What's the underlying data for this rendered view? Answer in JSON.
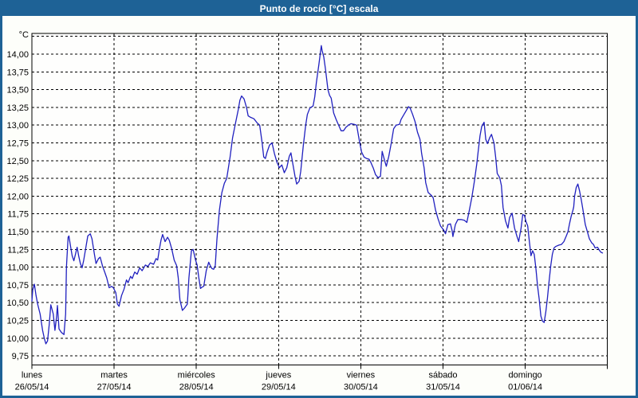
{
  "window": {
    "title": "Punto de rocío [°C] escala"
  },
  "colors": {
    "frame_blue": "#1E6296",
    "title_text": "#FFFFFF",
    "panel_bg": "#FDFEFA",
    "plot_bg": "#FEFEFD",
    "axis_black": "#000000",
    "grid_black": "#000000",
    "label_text": "#000000",
    "series_line": "#2020BF"
  },
  "chart_data": {
    "type": "line",
    "title": "Punto de rocío [°C] escala",
    "ylabel": "°C",
    "xlabel": "",
    "grid": "dashed",
    "legend": "none",
    "ylim": [
      9.63,
      14.29
    ],
    "ytick_min": 9.75,
    "ytick_step": 0.25,
    "ytick_count_with_hidden_top": 19,
    "ytick_labels": [
      "9,75",
      "10,00",
      "10,25",
      "10,50",
      "10,75",
      "11,00",
      "11,25",
      "11,50",
      "11,75",
      "12,00",
      "12,25",
      "12,50",
      "12,75",
      "13,00",
      "13,25",
      "13,50",
      "13,75",
      "14,00"
    ],
    "xlim_days": [
      0,
      7
    ],
    "categories": [
      {
        "day": "lunes",
        "date": "26/05/14"
      },
      {
        "day": "martes",
        "date": "27/05/14"
      },
      {
        "day": "miércoles",
        "date": "28/05/14"
      },
      {
        "day": "jueves",
        "date": "29/05/14"
      },
      {
        "day": "viernes",
        "date": "30/05/14"
      },
      {
        "day": "sábado",
        "date": "31/05/14"
      },
      {
        "day": "domingo",
        "date": "01/06/14"
      }
    ],
    "series": [
      {
        "points": [
          [
            0.0,
            10.52
          ],
          [
            0.01,
            10.68
          ],
          [
            0.03,
            10.76
          ],
          [
            0.05,
            10.6
          ],
          [
            0.07,
            10.48
          ],
          [
            0.1,
            10.34
          ],
          [
            0.13,
            10.11
          ],
          [
            0.15,
            10.0
          ],
          [
            0.17,
            9.92
          ],
          [
            0.19,
            9.96
          ],
          [
            0.21,
            10.19
          ],
          [
            0.23,
            10.47
          ],
          [
            0.26,
            10.34
          ],
          [
            0.28,
            10.11
          ],
          [
            0.3,
            10.3
          ],
          [
            0.31,
            10.46
          ],
          [
            0.33,
            10.13
          ],
          [
            0.36,
            10.08
          ],
          [
            0.39,
            10.05
          ],
          [
            0.41,
            10.34
          ],
          [
            0.42,
            11.0
          ],
          [
            0.44,
            11.42
          ],
          [
            0.45,
            11.44
          ],
          [
            0.47,
            11.29
          ],
          [
            0.49,
            11.16
          ],
          [
            0.51,
            11.09
          ],
          [
            0.53,
            11.18
          ],
          [
            0.55,
            11.28
          ],
          [
            0.57,
            11.15
          ],
          [
            0.59,
            11.05
          ],
          [
            0.61,
            10.99
          ],
          [
            0.63,
            11.1
          ],
          [
            0.66,
            11.3
          ],
          [
            0.68,
            11.44
          ],
          [
            0.71,
            11.47
          ],
          [
            0.73,
            11.4
          ],
          [
            0.76,
            11.18
          ],
          [
            0.78,
            11.05
          ],
          [
            0.81,
            11.12
          ],
          [
            0.83,
            11.14
          ],
          [
            0.86,
            11.01
          ],
          [
            0.88,
            10.95
          ],
          [
            0.91,
            10.85
          ],
          [
            0.94,
            10.71
          ],
          [
            0.97,
            10.73
          ],
          [
            0.99,
            10.71
          ],
          [
            1.02,
            10.64
          ],
          [
            1.04,
            10.48
          ],
          [
            1.06,
            10.45
          ],
          [
            1.09,
            10.6
          ],
          [
            1.12,
            10.69
          ],
          [
            1.15,
            10.82
          ],
          [
            1.17,
            10.78
          ],
          [
            1.2,
            10.87
          ],
          [
            1.22,
            10.84
          ],
          [
            1.25,
            10.93
          ],
          [
            1.28,
            10.9
          ],
          [
            1.31,
            10.99
          ],
          [
            1.34,
            10.95
          ],
          [
            1.38,
            11.03
          ],
          [
            1.41,
            11.01
          ],
          [
            1.44,
            11.06
          ],
          [
            1.48,
            11.04
          ],
          [
            1.51,
            11.12
          ],
          [
            1.53,
            11.1
          ],
          [
            1.55,
            11.25
          ],
          [
            1.57,
            11.38
          ],
          [
            1.59,
            11.46
          ],
          [
            1.62,
            11.36
          ],
          [
            1.65,
            11.42
          ],
          [
            1.67,
            11.38
          ],
          [
            1.7,
            11.26
          ],
          [
            1.73,
            11.1
          ],
          [
            1.76,
            11.02
          ],
          [
            1.78,
            10.85
          ],
          [
            1.8,
            10.54
          ],
          [
            1.83,
            10.39
          ],
          [
            1.86,
            10.43
          ],
          [
            1.89,
            10.48
          ],
          [
            1.91,
            10.85
          ],
          [
            1.94,
            11.23
          ],
          [
            1.96,
            11.25
          ],
          [
            1.99,
            11.1
          ],
          [
            2.01,
            11.03
          ],
          [
            2.03,
            10.85
          ],
          [
            2.05,
            10.7
          ],
          [
            2.07,
            10.72
          ],
          [
            2.09,
            10.73
          ],
          [
            2.12,
            10.95
          ],
          [
            2.15,
            11.07
          ],
          [
            2.17,
            11.02
          ],
          [
            2.19,
            10.98
          ],
          [
            2.21,
            10.97
          ],
          [
            2.23,
            11.02
          ],
          [
            2.25,
            11.39
          ],
          [
            2.28,
            11.8
          ],
          [
            2.31,
            12.05
          ],
          [
            2.34,
            12.18
          ],
          [
            2.37,
            12.25
          ],
          [
            2.41,
            12.55
          ],
          [
            2.44,
            12.82
          ],
          [
            2.48,
            13.05
          ],
          [
            2.51,
            13.22
          ],
          [
            2.53,
            13.35
          ],
          [
            2.55,
            13.41
          ],
          [
            2.58,
            13.37
          ],
          [
            2.61,
            13.25
          ],
          [
            2.63,
            13.13
          ],
          [
            2.66,
            13.11
          ],
          [
            2.7,
            13.09
          ],
          [
            2.74,
            13.03
          ],
          [
            2.77,
            13.0
          ],
          [
            2.8,
            12.75
          ],
          [
            2.82,
            12.55
          ],
          [
            2.84,
            12.53
          ],
          [
            2.86,
            12.62
          ],
          [
            2.89,
            12.72
          ],
          [
            2.92,
            12.75
          ],
          [
            2.95,
            12.6
          ],
          [
            2.98,
            12.48
          ],
          [
            3.01,
            12.4
          ],
          [
            3.04,
            12.44
          ],
          [
            3.07,
            12.33
          ],
          [
            3.1,
            12.4
          ],
          [
            3.13,
            12.56
          ],
          [
            3.15,
            12.61
          ],
          [
            3.17,
            12.48
          ],
          [
            3.2,
            12.28
          ],
          [
            3.22,
            12.17
          ],
          [
            3.25,
            12.21
          ],
          [
            3.27,
            12.35
          ],
          [
            3.3,
            12.7
          ],
          [
            3.33,
            13.0
          ],
          [
            3.35,
            13.15
          ],
          [
            3.38,
            13.24
          ],
          [
            3.42,
            13.27
          ],
          [
            3.44,
            13.4
          ],
          [
            3.46,
            13.6
          ],
          [
            3.49,
            13.85
          ],
          [
            3.52,
            14.12
          ],
          [
            3.53,
            14.05
          ],
          [
            3.55,
            13.96
          ],
          [
            3.57,
            13.79
          ],
          [
            3.6,
            13.5
          ],
          [
            3.62,
            13.42
          ],
          [
            3.64,
            13.38
          ],
          [
            3.67,
            13.17
          ],
          [
            3.7,
            13.08
          ],
          [
            3.73,
            13.0
          ],
          [
            3.76,
            12.92
          ],
          [
            3.79,
            12.92
          ],
          [
            3.82,
            12.97
          ],
          [
            3.85,
            13.0
          ],
          [
            3.88,
            13.02
          ],
          [
            3.92,
            13.01
          ],
          [
            3.95,
            13.0
          ],
          [
            3.98,
            12.8
          ],
          [
            4.01,
            12.62
          ],
          [
            4.04,
            12.55
          ],
          [
            4.07,
            12.53
          ],
          [
            4.1,
            12.52
          ],
          [
            4.12,
            12.48
          ],
          [
            4.15,
            12.4
          ],
          [
            4.18,
            12.3
          ],
          [
            4.21,
            12.26
          ],
          [
            4.24,
            12.28
          ],
          [
            4.26,
            12.63
          ],
          [
            4.29,
            12.5
          ],
          [
            4.31,
            12.42
          ],
          [
            4.34,
            12.56
          ],
          [
            4.37,
            12.74
          ],
          [
            4.4,
            12.95
          ],
          [
            4.43,
            13.0
          ],
          [
            4.47,
            13.01
          ],
          [
            4.49,
            13.08
          ],
          [
            4.52,
            13.14
          ],
          [
            4.55,
            13.2
          ],
          [
            4.58,
            13.26
          ],
          [
            4.6,
            13.24
          ],
          [
            4.63,
            13.15
          ],
          [
            4.66,
            13.05
          ],
          [
            4.69,
            12.9
          ],
          [
            4.72,
            12.8
          ],
          [
            4.74,
            12.6
          ],
          [
            4.77,
            12.4
          ],
          [
            4.79,
            12.19
          ],
          [
            4.82,
            12.05
          ],
          [
            4.85,
            12.02
          ],
          [
            4.88,
            11.98
          ],
          [
            4.91,
            11.8
          ],
          [
            4.94,
            11.68
          ],
          [
            4.97,
            11.58
          ],
          [
            5.01,
            11.52
          ],
          [
            5.03,
            11.47
          ],
          [
            5.06,
            11.6
          ],
          [
            5.09,
            11.61
          ],
          [
            5.11,
            11.52
          ],
          [
            5.12,
            11.43
          ],
          [
            5.15,
            11.6
          ],
          [
            5.18,
            11.67
          ],
          [
            5.22,
            11.67
          ],
          [
            5.26,
            11.66
          ],
          [
            5.29,
            11.63
          ],
          [
            5.32,
            11.8
          ],
          [
            5.35,
            11.98
          ],
          [
            5.38,
            12.2
          ],
          [
            5.41,
            12.45
          ],
          [
            5.43,
            12.65
          ],
          [
            5.45,
            12.85
          ],
          [
            5.47,
            12.98
          ],
          [
            5.5,
            13.04
          ],
          [
            5.52,
            12.8
          ],
          [
            5.54,
            12.74
          ],
          [
            5.57,
            12.83
          ],
          [
            5.59,
            12.87
          ],
          [
            5.62,
            12.75
          ],
          [
            5.64,
            12.55
          ],
          [
            5.66,
            12.32
          ],
          [
            5.69,
            12.26
          ],
          [
            5.71,
            12.15
          ],
          [
            5.73,
            11.84
          ],
          [
            5.76,
            11.65
          ],
          [
            5.79,
            11.55
          ],
          [
            5.81,
            11.7
          ],
          [
            5.84,
            11.76
          ],
          [
            5.87,
            11.55
          ],
          [
            5.9,
            11.43
          ],
          [
            5.92,
            11.36
          ],
          [
            5.95,
            11.55
          ],
          [
            5.97,
            11.74
          ],
          [
            5.99,
            11.73
          ],
          [
            6.01,
            11.64
          ],
          [
            6.03,
            11.58
          ],
          [
            6.05,
            11.36
          ],
          [
            6.07,
            11.16
          ],
          [
            6.09,
            11.23
          ],
          [
            6.11,
            11.18
          ],
          [
            6.13,
            10.98
          ],
          [
            6.15,
            10.73
          ],
          [
            6.17,
            10.55
          ],
          [
            6.19,
            10.31
          ],
          [
            6.21,
            10.24
          ],
          [
            6.23,
            10.22
          ],
          [
            6.25,
            10.37
          ],
          [
            6.27,
            10.56
          ],
          [
            6.29,
            10.8
          ],
          [
            6.31,
            11.02
          ],
          [
            6.33,
            11.18
          ],
          [
            6.35,
            11.27
          ],
          [
            6.37,
            11.29
          ],
          [
            6.41,
            11.31
          ],
          [
            6.44,
            11.32
          ],
          [
            6.47,
            11.36
          ],
          [
            6.5,
            11.44
          ],
          [
            6.52,
            11.5
          ],
          [
            6.54,
            11.62
          ],
          [
            6.56,
            11.72
          ],
          [
            6.58,
            11.8
          ],
          [
            6.59,
            11.85
          ],
          [
            6.6,
            12.0
          ],
          [
            6.62,
            12.12
          ],
          [
            6.64,
            12.17
          ],
          [
            6.66,
            12.08
          ],
          [
            6.68,
            11.96
          ],
          [
            6.7,
            11.82
          ],
          [
            6.73,
            11.6
          ],
          [
            6.76,
            11.48
          ],
          [
            6.78,
            11.4
          ],
          [
            6.81,
            11.34
          ],
          [
            6.83,
            11.32
          ],
          [
            6.85,
            11.27
          ],
          [
            6.88,
            11.28
          ],
          [
            6.9,
            11.24
          ],
          [
            6.92,
            11.21
          ],
          [
            6.94,
            11.2
          ]
        ]
      }
    ]
  }
}
